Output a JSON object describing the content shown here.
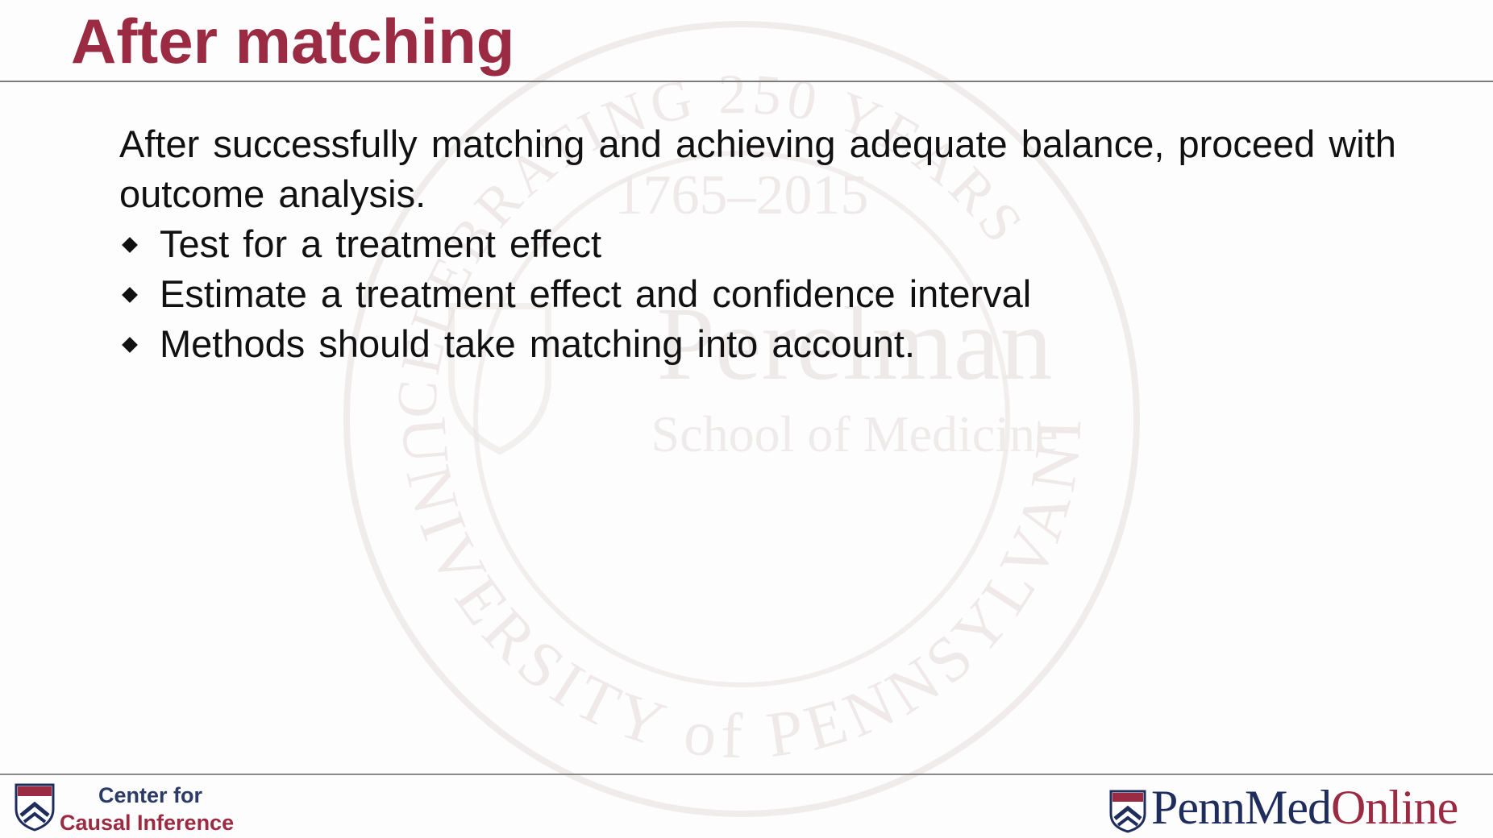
{
  "slide": {
    "title": "After matching",
    "intro": "After successfully matching and achieving adequate balance, proceed with outcome analysis.",
    "bullets": [
      "Test for a treatment effect",
      "Estimate a treatment effect and confidence interval",
      "Methods should take matching into account."
    ]
  },
  "footer": {
    "left_logo_line1": "Center for",
    "left_logo_line2": "Causal Inference",
    "right_logo_part1": "Penn",
    "right_logo_part2": "Med",
    "right_logo_part3": "Online"
  },
  "watermark": {
    "icon": "university-seal-icon",
    "text_top": "CELEBRATING 250 YEARS",
    "years": "1765–2015",
    "name": "Perelman",
    "subname": "School of Medicine",
    "ring_text": "UNIVERSITY of PENNSYLVANIA"
  },
  "colors": {
    "title": "#9b2a43",
    "navy": "#1f2d5c",
    "rule": "#7b7b7b"
  }
}
